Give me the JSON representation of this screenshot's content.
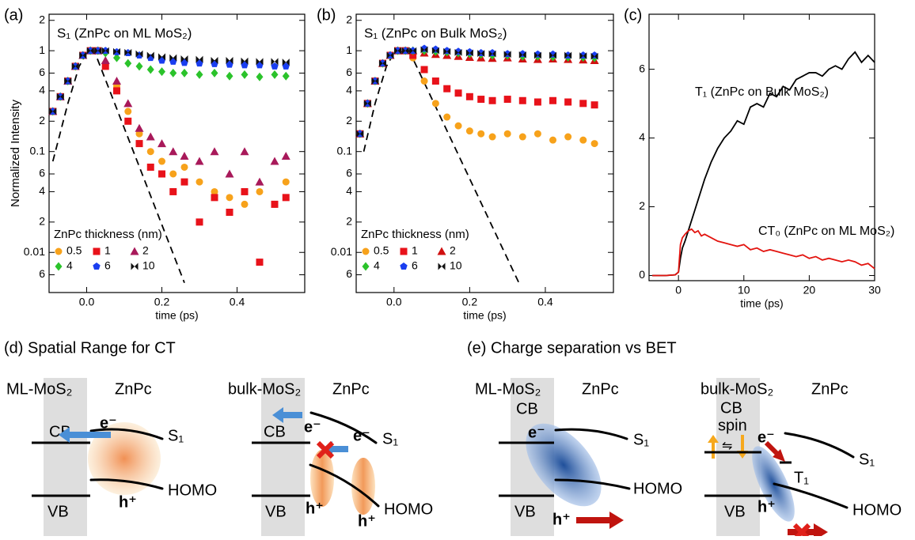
{
  "chart_data": [
    {
      "type": "scatter",
      "label": "(a)",
      "title": "S₁ (ZnPc on ML MoS₂)",
      "xlabel": "time (ps)",
      "ylabel": "Normalized Intensity",
      "legend_title": "ZnPc thickness (nm)",
      "log_y": true,
      "xlim": [
        -0.1,
        0.58
      ],
      "ylim": [
        0.004,
        2.3
      ],
      "xticks": [
        {
          "value": 0,
          "label": "0.0"
        },
        0.2,
        0.4
      ],
      "yticks": [
        {
          "value": 0.006,
          "label": "6"
        },
        0.01,
        {
          "value": 0.02,
          "label": "2"
        },
        {
          "value": 0.04,
          "label": "4"
        },
        {
          "value": 0.06,
          "label": "6"
        },
        0.1,
        {
          "value": 0.2,
          "label": "2"
        },
        {
          "value": 0.4,
          "label": "4"
        },
        {
          "value": 0.6,
          "label": "6"
        },
        1,
        2
      ],
      "x": [
        -0.09,
        -0.07,
        -0.05,
        -0.03,
        -0.01,
        0.01,
        0.03,
        0.05,
        0.08,
        0.11,
        0.14,
        0.17,
        0.2,
        0.23,
        0.26,
        0.3,
        0.34,
        0.38,
        0.42,
        0.46,
        0.5,
        0.53
      ],
      "series": [
        {
          "name": "0.5",
          "color": "#f7a21b",
          "marker": "circle",
          "values": [
            0.25,
            0.35,
            0.5,
            0.7,
            0.9,
            1.0,
            1.0,
            0.75,
            0.45,
            0.25,
            0.15,
            0.1,
            0.08,
            0.06,
            0.07,
            0.05,
            0.04,
            0.035,
            0.03,
            0.04,
            0.03,
            0.05
          ]
        },
        {
          "name": "1",
          "color": "#e8121a",
          "marker": "square",
          "values": [
            0.25,
            0.35,
            0.5,
            0.7,
            0.9,
            1.0,
            1.0,
            0.7,
            0.4,
            0.2,
            0.12,
            0.07,
            0.06,
            0.04,
            0.05,
            0.02,
            0.035,
            0.025,
            0.04,
            0.008,
            0.03,
            0.035
          ]
        },
        {
          "name": "2",
          "color": "#a8195a",
          "marker": "triangle",
          "values": [
            0.25,
            0.35,
            0.5,
            0.7,
            0.9,
            1.0,
            1.0,
            0.8,
            0.5,
            0.3,
            0.17,
            0.14,
            0.12,
            0.1,
            0.09,
            0.08,
            0.1,
            0.06,
            0.1,
            0.05,
            0.08,
            0.09
          ]
        },
        {
          "name": "4",
          "color": "#2bc32b",
          "marker": "diamond",
          "values": [
            0.25,
            0.35,
            0.5,
            0.7,
            0.9,
            1.0,
            1.0,
            0.95,
            0.85,
            0.75,
            0.7,
            0.65,
            0.62,
            0.6,
            0.6,
            0.58,
            0.6,
            0.56,
            0.58,
            0.55,
            0.58,
            0.56
          ]
        },
        {
          "name": "6",
          "color": "#1a3ef0",
          "marker": "pentagon",
          "values": [
            0.25,
            0.35,
            0.5,
            0.7,
            0.9,
            1.0,
            1.0,
            1.0,
            0.97,
            0.95,
            0.9,
            0.85,
            0.8,
            0.78,
            0.76,
            0.75,
            0.74,
            0.73,
            0.72,
            0.72,
            0.7,
            0.7
          ]
        },
        {
          "name": "10",
          "color": "#111111",
          "marker": "bowtie",
          "values": [
            0.25,
            0.35,
            0.5,
            0.7,
            0.9,
            1.0,
            1.0,
            1.0,
            0.98,
            0.96,
            0.93,
            0.9,
            0.87,
            0.85,
            0.83,
            0.82,
            0.8,
            0.8,
            0.79,
            0.78,
            0.78,
            0.77
          ]
        }
      ],
      "fit": {
        "x": [
          -0.09,
          -0.05,
          -0.02,
          0.0,
          0.02,
          0.26
        ],
        "values": [
          0.08,
          0.3,
          0.7,
          0.95,
          1.0,
          0.005
        ]
      }
    },
    {
      "type": "scatter",
      "label": "(b)",
      "title": "S₁ (ZnPc on Bulk MoS₂)",
      "xlabel": "time (ps)",
      "legend_title": "ZnPc thickness (nm)",
      "log_y": true,
      "xlim": [
        -0.1,
        0.58
      ],
      "ylim": [
        0.004,
        2.3
      ],
      "xticks": [
        {
          "value": 0,
          "label": "0.0"
        },
        0.2,
        0.4
      ],
      "yticks": [
        {
          "value": 0.006,
          "label": "6"
        },
        0.01,
        {
          "value": 0.02,
          "label": "2"
        },
        {
          "value": 0.04,
          "label": "4"
        },
        {
          "value": 0.06,
          "label": "6"
        },
        0.1,
        {
          "value": 0.2,
          "label": "2"
        },
        {
          "value": 0.4,
          "label": "4"
        },
        {
          "value": 0.6,
          "label": "6"
        },
        1,
        2
      ],
      "x": [
        -0.09,
        -0.07,
        -0.05,
        -0.03,
        -0.01,
        0.01,
        0.03,
        0.05,
        0.08,
        0.11,
        0.14,
        0.17,
        0.2,
        0.23,
        0.26,
        0.3,
        0.34,
        0.38,
        0.42,
        0.46,
        0.5,
        0.53
      ],
      "series": [
        {
          "name": "0.5",
          "color": "#f7a21b",
          "marker": "circle",
          "values": [
            0.15,
            0.3,
            0.5,
            0.75,
            0.9,
            1.0,
            1.0,
            0.85,
            0.5,
            0.3,
            0.22,
            0.18,
            0.16,
            0.15,
            0.14,
            0.15,
            0.14,
            0.15,
            0.13,
            0.14,
            0.13,
            0.12
          ]
        },
        {
          "name": "1",
          "color": "#e8121a",
          "marker": "square",
          "values": [
            0.15,
            0.3,
            0.5,
            0.75,
            0.9,
            1.0,
            1.0,
            0.9,
            0.65,
            0.5,
            0.42,
            0.38,
            0.35,
            0.33,
            0.32,
            0.33,
            0.32,
            0.31,
            0.32,
            0.31,
            0.3,
            0.29
          ]
        },
        {
          "name": "2",
          "color": "#d01010",
          "marker": "triangle",
          "values": [
            0.15,
            0.3,
            0.5,
            0.75,
            0.9,
            1.0,
            1.0,
            1.0,
            0.95,
            0.92,
            0.9,
            0.88,
            0.86,
            0.85,
            0.84,
            0.85,
            0.83,
            0.82,
            0.83,
            0.82,
            0.81,
            0.8
          ]
        },
        {
          "name": "4",
          "color": "#2bc32b",
          "marker": "diamond",
          "values": [
            0.15,
            0.3,
            0.5,
            0.75,
            0.9,
            1.0,
            1.0,
            1.0,
            1.0,
            0.98,
            0.97,
            0.95,
            0.93,
            0.92,
            0.9,
            0.9,
            0.88,
            0.88,
            0.87,
            0.86,
            0.86,
            0.85
          ]
        },
        {
          "name": "6",
          "color": "#1a3ef0",
          "marker": "pentagon",
          "values": [
            0.15,
            0.3,
            0.5,
            0.75,
            0.9,
            1.0,
            1.0,
            1.0,
            1.05,
            1.03,
            1.0,
            0.98,
            0.97,
            0.95,
            0.95,
            0.93,
            0.93,
            0.92,
            0.92,
            0.9,
            0.9,
            0.9
          ]
        },
        {
          "name": "10",
          "color": "#111111",
          "marker": "bowtie",
          "values": [
            0.15,
            0.3,
            0.5,
            0.75,
            0.9,
            1.0,
            1.0,
            1.0,
            1.02,
            1.0,
            0.98,
            0.96,
            0.95,
            0.94,
            0.93,
            0.92,
            0.91,
            0.9,
            0.9,
            0.9,
            0.89,
            0.88
          ]
        }
      ],
      "fit": {
        "x": [
          -0.08,
          -0.05,
          -0.02,
          0.0,
          0.04,
          0.33
        ],
        "values": [
          0.1,
          0.3,
          0.7,
          0.95,
          1.0,
          0.005
        ]
      }
    },
    {
      "type": "line",
      "label": "(c)",
      "xlabel": "time (ps)",
      "xlim": [
        -4.5,
        30
      ],
      "ylim": [
        -0.15,
        7.6
      ],
      "xticks": [
        0,
        10,
        20,
        30
      ],
      "yticks": [
        0,
        2,
        4,
        6
      ],
      "x": [
        -4,
        -2,
        -0.5,
        0,
        0.3,
        0.6,
        1,
        1.5,
        2,
        2.5,
        3,
        3.5,
        4,
        5,
        6,
        7,
        8,
        9,
        10,
        11,
        12,
        13,
        14,
        15,
        16,
        17,
        18,
        19,
        20,
        21,
        22,
        23,
        24,
        25,
        26,
        27,
        28,
        29,
        30
      ],
      "series": [
        {
          "name": "T₁ (ZnPc on Bulk MoS₂)",
          "color": "#000000",
          "values": [
            0,
            0,
            0.02,
            0.1,
            0.5,
            0.8,
            1.0,
            1.3,
            1.6,
            1.9,
            2.2,
            2.5,
            2.8,
            3.3,
            3.7,
            4.0,
            4.2,
            4.5,
            4.4,
            4.9,
            5.0,
            4.9,
            5.3,
            5.2,
            5.5,
            5.4,
            5.7,
            5.8,
            5.9,
            5.9,
            5.8,
            6.0,
            6.1,
            6.0,
            6.3,
            6.5,
            6.2,
            6.4,
            6.2
          ]
        },
        {
          "name": "CT₀ (ZnPc on ML MoS₂)",
          "color": "#e3140f",
          "values": [
            0,
            0,
            0.02,
            0.1,
            0.9,
            1.1,
            1.2,
            1.3,
            1.35,
            1.25,
            1.3,
            1.15,
            1.2,
            1.1,
            1.0,
            0.95,
            0.9,
            0.85,
            0.9,
            0.75,
            0.8,
            0.7,
            0.75,
            0.7,
            0.65,
            0.6,
            0.55,
            0.6,
            0.5,
            0.55,
            0.45,
            0.5,
            0.45,
            0.4,
            0.45,
            0.4,
            0.3,
            0.35,
            0.2
          ]
        }
      ]
    }
  ],
  "diagram_d": {
    "title": "(d) Spatial Range for CT",
    "left": {
      "substrate": "ML-MoS₂",
      "molecule": "ZnPc",
      "cb": "CB",
      "vb": "VB",
      "s1": "S₁",
      "homo": "HOMO",
      "electron": "e⁻",
      "hole": "h⁺"
    },
    "right": {
      "substrate": "bulk-MoS₂",
      "molecule": "ZnPc",
      "cb": "CB",
      "vb": "VB",
      "s1": "S₁",
      "homo": "HOMO",
      "electrons": [
        "e⁻",
        "e⁻"
      ],
      "holes": [
        "h⁺",
        "h⁺"
      ]
    }
  },
  "diagram_e": {
    "title": "(e) Charge separation vs BET",
    "left": {
      "substrate": "ML-MoS₂",
      "molecule": "ZnPc",
      "cb": "CB",
      "vb": "VB",
      "s1": "S₁",
      "homo": "HOMO",
      "electron": "e⁻",
      "hole": "h⁺"
    },
    "right": {
      "substrate": "bulk-MoS₂",
      "cb": "CB",
      "molecule": "ZnPc",
      "spin": "spin",
      "spin_flip": "⇋",
      "electron": "e⁻",
      "t1": "T₁",
      "s1": "S₁",
      "vb": "VB",
      "hole": "h⁺",
      "homo": "HOMO"
    }
  }
}
